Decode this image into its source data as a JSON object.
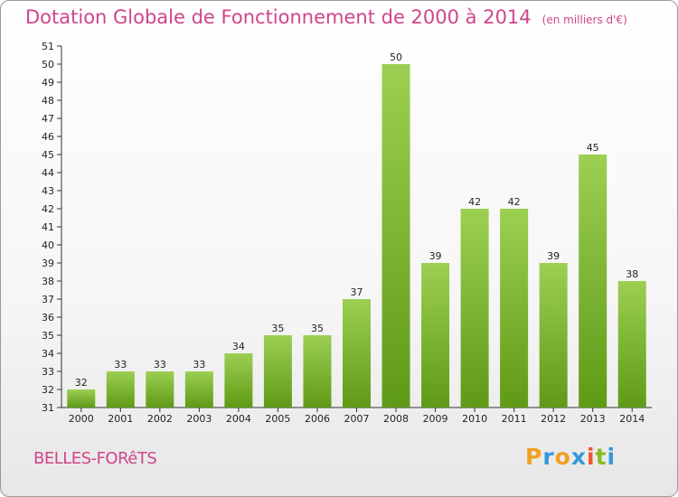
{
  "title": "Dotation Globale de Fonctionnement de 2000 à 2014",
  "subtitle": "(en milliers d'€)",
  "commune": "BELLES-FORêTS",
  "logo": {
    "letters": [
      "P",
      "r",
      "o",
      "x",
      "i",
      "t",
      "i"
    ],
    "colors": [
      "#f0a020",
      "#3399dd",
      "#f0a020",
      "#3399dd",
      "#ee5533",
      "#88bb22",
      "#3399dd"
    ]
  },
  "colors": {
    "bar_light": "#9ccf52",
    "bar_dark": "#5f9a16",
    "axis": "#333333",
    "grid": "#cccccc"
  },
  "chart_data": {
    "type": "bar",
    "title": "Dotation Globale de Fonctionnement de 2000 à 2014",
    "subtitle": "(en milliers d'€)",
    "categories": [
      "2000",
      "2001",
      "2002",
      "2003",
      "2004",
      "2005",
      "2006",
      "2007",
      "2008",
      "2009",
      "2010",
      "2011",
      "2012",
      "2013",
      "2014"
    ],
    "values": [
      32,
      33,
      33,
      33,
      34,
      35,
      35,
      37,
      50,
      39,
      42,
      42,
      39,
      45,
      38
    ],
    "ylim": [
      31,
      51
    ],
    "yticks": [
      31,
      32,
      33,
      34,
      35,
      36,
      37,
      38,
      39,
      40,
      41,
      42,
      43,
      44,
      45,
      46,
      47,
      48,
      49,
      50,
      51
    ],
    "xlabel": "",
    "ylabel": "",
    "grid": false,
    "data_labels": true
  }
}
